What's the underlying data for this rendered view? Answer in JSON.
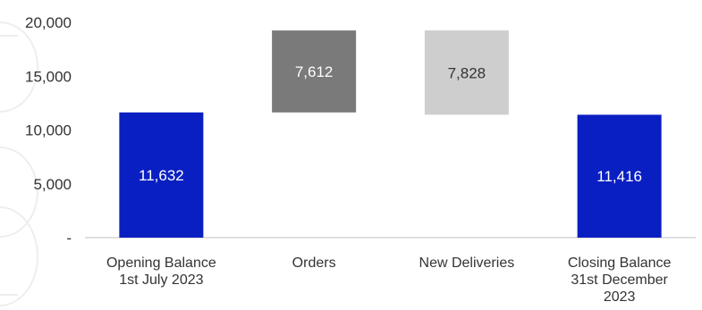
{
  "chart_data": {
    "type": "bar",
    "subtype": "waterfall",
    "categories": [
      "Opening Balance 1st July 2023",
      "Orders",
      "New Deliveries",
      "Closing Balance 31st December 2023"
    ],
    "category_label_lines": [
      [
        "Opening Balance",
        "1st July 2023"
      ],
      [
        "Orders"
      ],
      [
        "New Deliveries"
      ],
      [
        "Closing Balance",
        "31st December",
        "2023"
      ]
    ],
    "values": [
      11632,
      7612,
      -7828,
      11416
    ],
    "value_labels": [
      "11,632",
      "7,612",
      "7,828",
      "11,416"
    ],
    "bar_ranges": [
      [
        0,
        11632
      ],
      [
        11632,
        19244
      ],
      [
        11416,
        19244
      ],
      [
        0,
        11416
      ]
    ],
    "bar_colors": [
      "#0A1FC2",
      "#7A7A7A",
      "#CECECE",
      "#0A1FC2"
    ],
    "label_colors": [
      "#ffffff",
      "#ffffff",
      "#333333",
      "#ffffff"
    ],
    "yticks": [
      "-",
      "5,000",
      "10,000",
      "15,000",
      "20,000"
    ],
    "ytick_values": [
      0,
      5000,
      10000,
      15000,
      20000
    ],
    "ylim": [
      0,
      20000
    ],
    "title": "",
    "xlabel": "",
    "ylabel": "",
    "grid": false,
    "legend": "none"
  }
}
